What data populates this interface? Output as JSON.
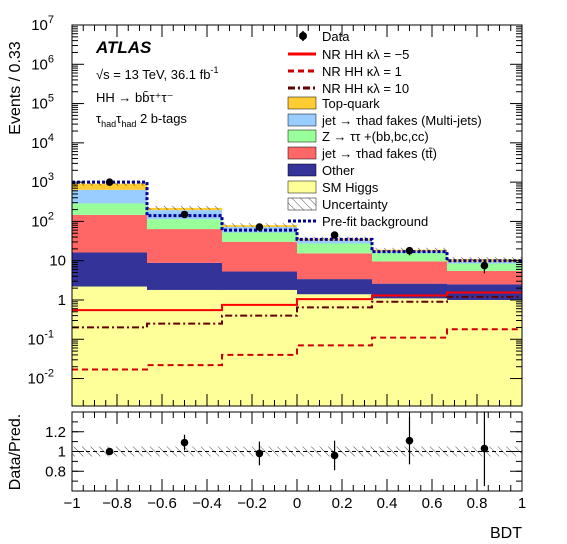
{
  "chart_data": [
    {
      "type": "bar",
      "stacked": true,
      "log_y": true,
      "ylabel": "Events / 0.33",
      "ylim": [
        0.002,
        10000000
      ],
      "xlim": [
        -1,
        1
      ],
      "y_ticks": [
        {
          "value": 10000000,
          "mant": "10",
          "exp": "7"
        },
        {
          "value": 1000000,
          "mant": "10",
          "exp": "6"
        },
        {
          "value": 100000,
          "mant": "10",
          "exp": "5"
        },
        {
          "value": 10000,
          "mant": "10",
          "exp": "4"
        },
        {
          "value": 1000,
          "mant": "10",
          "exp": "3"
        },
        {
          "value": 100,
          "mant": "10",
          "exp": "2"
        },
        {
          "value": 10,
          "mant": "10",
          "exp": ""
        },
        {
          "value": 1,
          "mant": "1",
          "exp": ""
        },
        {
          "value": 0.1,
          "mant": "10",
          "exp": "-1"
        },
        {
          "value": 0.01,
          "mant": "10",
          "exp": "-2"
        }
      ],
      "bin_edges": [
        -1,
        -0.6667,
        -0.3333,
        0,
        0.3333,
        0.6667,
        1
      ],
      "background_stack": [
        {
          "name": "SM Higgs",
          "color": "#ffff99",
          "values": [
            2.2,
            1.8,
            1.8,
            1.4,
            1.1,
            1.0
          ]
        },
        {
          "name": "Other",
          "color": "#333399",
          "values": [
            14,
            7,
            3.5,
            2,
            1.5,
            1.5
          ]
        },
        {
          "name": "jet → τhad fakes (tt̄)",
          "color": "#ff6666",
          "values": [
            130,
            55,
            25,
            12,
            7,
            3
          ]
        },
        {
          "name": "Z → ττ +(bb,bc,cc)",
          "color": "#99ff99",
          "values": [
            140,
            50,
            22,
            12,
            6,
            3
          ]
        },
        {
          "name": "jet → τhad fakes (Multi-jets)",
          "color": "#99ccff",
          "values": [
            350,
            80,
            20,
            5,
            1.5,
            0.7
          ]
        },
        {
          "name": "Top-quark",
          "color": "#ffcc33",
          "values": [
            280,
            27,
            8,
            4,
            1.9,
            1.8
          ]
        }
      ],
      "prefit_background": {
        "name": "Pre-fit background",
        "color": "#000099",
        "values": [
          1000,
          140,
          60,
          35,
          17,
          10
        ]
      },
      "signals": [
        {
          "name": "NR HH κλ = −5",
          "color": "#ff0000",
          "style": "solid",
          "values": [
            0.55,
            0.55,
            0.75,
            1.05,
            1.3,
            1.55
          ]
        },
        {
          "name": "NR HH κλ = 1",
          "color": "#cc0000",
          "style": "dashed",
          "values": [
            0.017,
            0.022,
            0.04,
            0.07,
            0.11,
            0.18
          ]
        },
        {
          "name": "NR HH κλ = 10",
          "color": "#660000",
          "style": "dashdot",
          "values": [
            0.2,
            0.25,
            0.4,
            0.65,
            0.9,
            1.2
          ]
        }
      ],
      "data_points": {
        "name": "Data",
        "x": [
          -0.833,
          -0.5,
          -0.167,
          0.167,
          0.5,
          0.833
        ],
        "y": [
          1000,
          150,
          72,
          45,
          18,
          7.5
        ]
      },
      "legend": {
        "placement": "top-right",
        "uncertainty_label": "Uncertainty"
      },
      "text": {
        "brand": "ATLAS",
        "energy": "√s = 13 TeV, 36.1 fb",
        "energy_sup": "-1",
        "process": "HH → bb̄τ⁺τ⁻",
        "channel_pre": "τ",
        "channel_sub1": "had",
        "channel_mid": "τ",
        "channel_sub2": "had",
        "channel_post": " 2 b-tags"
      }
    },
    {
      "type": "scatter",
      "xlabel": "BDT",
      "ylabel": "Data/Pred.",
      "xlim": [
        -1,
        1
      ],
      "ylim": [
        0.6,
        1.4
      ],
      "y_ticks": [
        "0.8",
        "1",
        "1.2"
      ],
      "x_ticks": [
        "−1",
        "−0.8",
        "−0.6",
        "−0.4",
        "−0.2",
        "0",
        "0.2",
        "0.4",
        "0.6",
        "0.8",
        "1"
      ],
      "x": [
        -0.833,
        -0.5,
        -0.167,
        0.167,
        0.5,
        0.833
      ],
      "y": [
        1.0,
        1.09,
        0.98,
        0.96,
        1.11,
        1.03
      ],
      "yerr": [
        0.03,
        0.08,
        0.12,
        0.15,
        0.24,
        0.38
      ],
      "uncertainty_band": 0.05
    }
  ]
}
